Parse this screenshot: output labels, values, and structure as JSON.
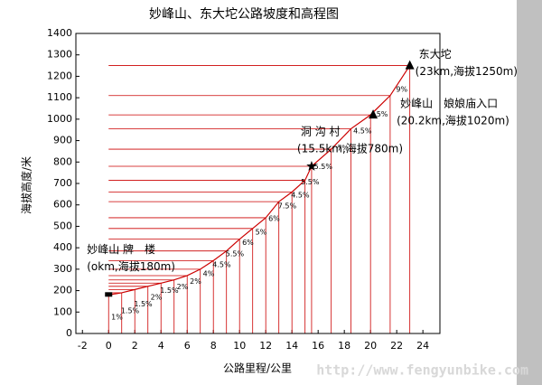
{
  "chart_data": {
    "type": "elevation-profile",
    "title": "妙峰山、东大坨公路坡度和高程图",
    "x_label": "公路里程/公里",
    "y_label": "海拔高度/米",
    "watermark": "http://www.fengyunbike.com",
    "color": "#cc0000",
    "xlim": [
      -2.5,
      25.3
    ],
    "ylim": [
      0,
      1400
    ],
    "xticks": [
      -2,
      0,
      2,
      4,
      6,
      8,
      10,
      12,
      14,
      16,
      18,
      20,
      22,
      24
    ],
    "yticks": [
      0,
      100,
      200,
      300,
      400,
      500,
      600,
      700,
      800,
      900,
      1000,
      1100,
      1200,
      1300,
      1400
    ],
    "x": [
      0,
      1,
      2,
      3,
      4,
      5,
      6,
      7,
      8,
      9,
      10,
      11,
      12,
      13,
      14,
      15,
      15.5,
      17,
      18.5,
      20,
      21.5,
      23
    ],
    "values": [
      180,
      190,
      205,
      220,
      235,
      250,
      270,
      300,
      340,
      385,
      440,
      490,
      540,
      615,
      660,
      715,
      780,
      860,
      955,
      1020,
      1110,
      1250
    ],
    "slope_labels": [
      "1%",
      "1.5%",
      "1.5%",
      "2%",
      "1.5%",
      "2%",
      "2%",
      "4%",
      "4.5%",
      "5.5%",
      "6%",
      "5%",
      "6%",
      "7.5%",
      "4.5%",
      "5.5%",
      "5.5%",
      "7%",
      "4.5%",
      "5%",
      "9%"
    ],
    "landmarks": [
      {
        "name": "妙峰山 牌　楼",
        "detail": "(okm,海拔180m)",
        "x": 0,
        "y": 180,
        "marker": "bar"
      },
      {
        "name": "洞 沟 村",
        "detail": "(15.5km,海拔780m)",
        "x": 15.5,
        "y": 780,
        "marker": "star"
      },
      {
        "name": "妙峰山　娘娘庙入口",
        "detail": "(20.2km,海拔1020m)",
        "x": 20.2,
        "y": 1020,
        "marker": "triangle"
      },
      {
        "name": "东大坨",
        "detail": "(23km,海拔1250m)",
        "x": 23,
        "y": 1250,
        "marker": "triangle"
      }
    ]
  }
}
